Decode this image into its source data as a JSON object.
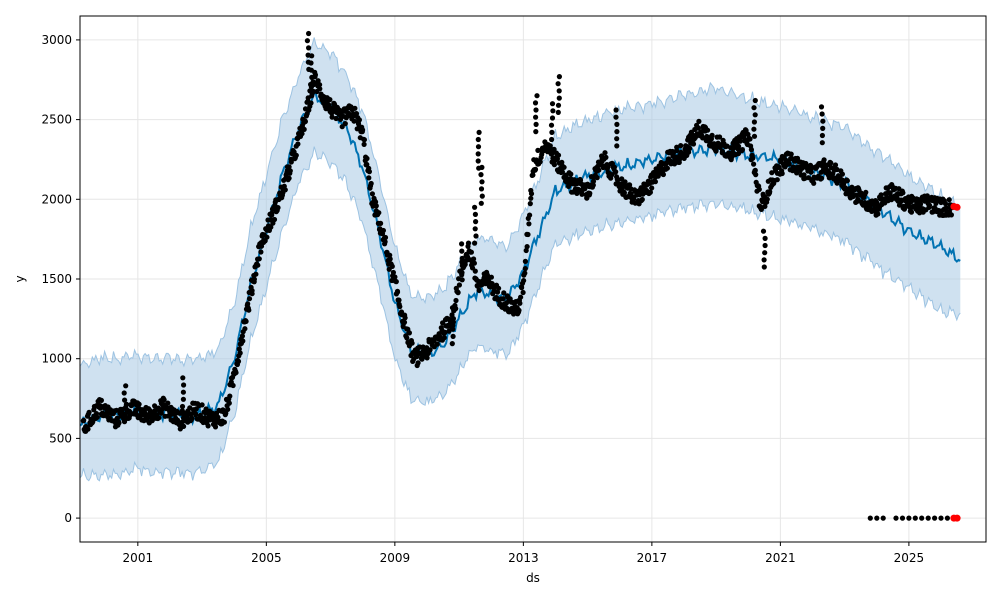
{
  "chart_data": {
    "type": "scatter",
    "xlabel": "ds",
    "ylabel": "y",
    "xlim": [
      1999.2,
      2027.4
    ],
    "ylim": [
      -150,
      3150
    ],
    "grid": true,
    "xticks": [
      2001,
      2005,
      2009,
      2013,
      2017,
      2021,
      2025
    ],
    "xtick_labels": [
      "2001",
      "2005",
      "2009",
      "2013",
      "2017",
      "2021",
      "2025"
    ],
    "yticks": [
      0,
      500,
      1000,
      1500,
      2000,
      2500,
      3000
    ],
    "ytick_labels": [
      "0",
      "500",
      "1000",
      "1500",
      "2000",
      "2500",
      "3000"
    ],
    "colors": {
      "observed": "#000000",
      "forecast": "#0072B2",
      "band_fill": "#A8C9E3",
      "band_edge": "#9DC3E2",
      "highlight": "#FF0000",
      "grid": "#E6E6E6"
    },
    "forecast": {
      "x": [
        1999.2,
        1999.8,
        2000.5,
        2001.0,
        2001.5,
        2002.0,
        2002.5,
        2003.0,
        2003.5,
        2004.0,
        2004.5,
        2005.0,
        2005.5,
        2006.0,
        2006.5,
        2007.0,
        2007.5,
        2008.0,
        2008.5,
        2009.0,
        2009.5,
        2010.0,
        2010.5,
        2011.0,
        2011.5,
        2012.0,
        2012.5,
        2013.0,
        2013.5,
        2014.0,
        2015.0,
        2016.0,
        2017.0,
        2018.0,
        2019.0,
        2020.0,
        2021.0,
        2022.0,
        2023.0,
        2024.0,
        2025.0,
        2026.0,
        2026.6
      ],
      "yhat": [
        580,
        640,
        650,
        680,
        650,
        660,
        640,
        650,
        700,
        1000,
        1450,
        1800,
        2150,
        2450,
        2650,
        2580,
        2450,
        2200,
        1800,
        1350,
        1050,
        1020,
        1080,
        1250,
        1420,
        1400,
        1380,
        1550,
        1800,
        2050,
        2150,
        2200,
        2250,
        2300,
        2320,
        2280,
        2250,
        2180,
        2100,
        1950,
        1800,
        1700,
        1620
      ],
      "upper": [
        950,
        1000,
        1000,
        1020,
        1000,
        1010,
        990,
        1000,
        1050,
        1350,
        1800,
        2150,
        2500,
        2780,
        2980,
        2920,
        2780,
        2550,
        2150,
        1700,
        1400,
        1380,
        1430,
        1580,
        1750,
        1750,
        1700,
        1900,
        2150,
        2400,
        2500,
        2560,
        2600,
        2650,
        2700,
        2630,
        2580,
        2520,
        2450,
        2300,
        2150,
        2020,
        1960
      ],
      "lower": [
        260,
        270,
        280,
        310,
        280,
        300,
        280,
        300,
        350,
        650,
        1100,
        1450,
        1800,
        2100,
        2300,
        2230,
        2100,
        1850,
        1450,
        1000,
        750,
        720,
        770,
        920,
        1080,
        1050,
        1030,
        1200,
        1480,
        1720,
        1800,
        1850,
        1900,
        1950,
        1970,
        1930,
        1880,
        1820,
        1740,
        1580,
        1440,
        1300,
        1280
      ]
    },
    "observed_trace": {
      "x": [
        1999.3,
        1999.8,
        2000.3,
        2000.8,
        2001.3,
        2001.8,
        2002.3,
        2002.8,
        2003.3,
        2003.7,
        2004.0,
        2004.4,
        2004.8,
        2005.1,
        2005.5,
        2005.9,
        2006.2,
        2006.5,
        2006.9,
        2007.3,
        2007.7,
        2008.0,
        2008.3,
        2008.6,
        2008.9,
        2009.2,
        2009.6,
        2010.0,
        2010.4,
        2010.8,
        2011.0,
        2011.3,
        2011.6,
        2011.9,
        2012.2,
        2012.5,
        2012.8,
        2013.0,
        2013.3,
        2013.7,
        2014.0,
        2014.5,
        2015.0,
        2015.5,
        2016.0,
        2016.5,
        2017.0,
        2017.5,
        2018.0,
        2018.5,
        2019.0,
        2019.5,
        2020.0,
        2020.4,
        2020.8,
        2021.2,
        2021.6,
        2022.0,
        2022.4,
        2022.8,
        2023.2,
        2023.6,
        2024.0,
        2024.4,
        2024.8,
        2025.2,
        2025.6,
        2026.0,
        2026.4
      ],
      "y": [
        560,
        700,
        620,
        690,
        640,
        700,
        610,
        680,
        620,
        640,
        900,
        1300,
        1700,
        1850,
        2050,
        2300,
        2500,
        2750,
        2600,
        2500,
        2550,
        2400,
        2000,
        1800,
        1550,
        1300,
        1000,
        1050,
        1150,
        1250,
        1500,
        1700,
        1450,
        1500,
        1400,
        1350,
        1300,
        1450,
        2200,
        2350,
        2250,
        2100,
        2050,
        2250,
        2100,
        2000,
        2100,
        2250,
        2300,
        2450,
        2350,
        2300,
        2400,
        1950,
        2150,
        2250,
        2200,
        2150,
        2200,
        2150,
        2050,
        2000,
        1950,
        2050,
        2000,
        1950,
        1980,
        1950,
        1950
      ]
    },
    "observed_spikes": [
      {
        "x": 2006.3,
        "y": 3040
      },
      {
        "x": 2006.4,
        "y": 2900
      },
      {
        "x": 2011.6,
        "y": 2420
      },
      {
        "x": 2011.7,
        "y": 2200
      },
      {
        "x": 2011.5,
        "y": 1950
      },
      {
        "x": 2013.4,
        "y": 2650
      },
      {
        "x": 2013.9,
        "y": 2600
      },
      {
        "x": 2014.1,
        "y": 2770
      },
      {
        "x": 2015.9,
        "y": 2560
      },
      {
        "x": 2020.2,
        "y": 2620
      },
      {
        "x": 2022.3,
        "y": 2580
      },
      {
        "x": 2002.4,
        "y": 880
      },
      {
        "x": 2000.6,
        "y": 830
      },
      {
        "x": 2010.8,
        "y": 1320
      },
      {
        "x": 2011.1,
        "y": 1720
      },
      {
        "x": 2020.5,
        "y": 1800
      }
    ],
    "observed_zero": {
      "x": [
        2023.8,
        2024.0,
        2024.2,
        2024.6,
        2024.8,
        2025.0,
        2025.2,
        2025.4,
        2025.6,
        2025.8,
        2026.0,
        2026.2
      ],
      "y": [
        0,
        0,
        0,
        0,
        0,
        0,
        0,
        0,
        0,
        0,
        0,
        0
      ]
    },
    "highlighted": {
      "x": [
        2026.4,
        2026.5,
        2026.4,
        2026.5
      ],
      "y": [
        1955,
        1950,
        0,
        0
      ]
    }
  }
}
